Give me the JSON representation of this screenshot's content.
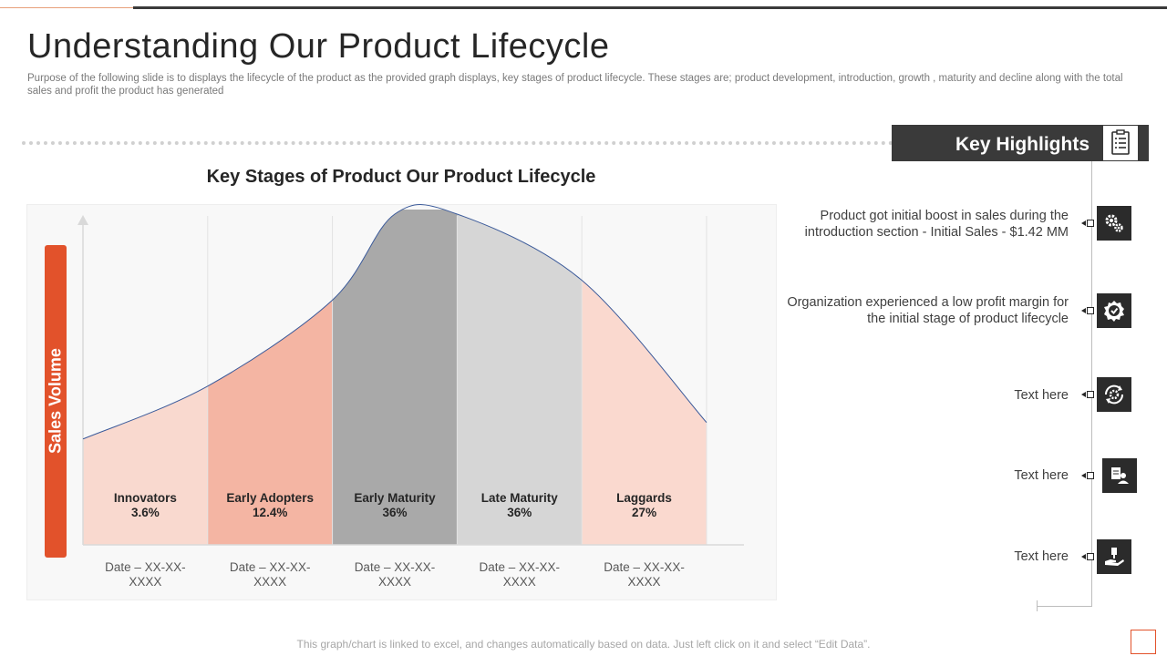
{
  "page": {
    "title": "Understanding Our Product Lifecycle",
    "subtitle": "Purpose of the following slide is to displays the lifecycle of the product as the provided graph displays, key stages of product lifecycle. These stages are; product development, introduction, growth , maturity and decline along with the total sales and profit the product has generated",
    "footnote": "This graph/chart is linked to excel, and changes automatically based on data. Just left click on it and select “Edit Data”."
  },
  "chart_data": {
    "type": "area",
    "title": "Key Stages of Product Our Product Lifecycle",
    "ylabel": "Sales Volume",
    "xlabel": "",
    "stages": [
      {
        "name": "Innovators",
        "percent": "3.6%",
        "value": 3.6,
        "date": "Date – XX-XX-XXXX",
        "color": "#f9d9cf"
      },
      {
        "name": "Early Adopters",
        "percent": "12.4%",
        "value": 12.4,
        "date": "Date – XX-XX-XXXX",
        "color": "#f4b5a3"
      },
      {
        "name": "Early Maturity",
        "percent": "36%",
        "value": 36,
        "date": "Date – XX-XX-XXXX",
        "color": "#a9a9a9"
      },
      {
        "name": "Late Maturity",
        "percent": "36%",
        "value": 36,
        "date": "Date – XX-XX-XXXX",
        "color": "#d6d6d6"
      },
      {
        "name": "Laggards",
        "percent": "27%",
        "value": 27,
        "date": "Date – XX-XX-XXXX",
        "color": "#fad9cf"
      }
    ],
    "curve": {
      "x": [
        0,
        1,
        2,
        2.5,
        3,
        4,
        5
      ],
      "y": [
        32,
        48,
        74,
        100,
        100,
        80,
        37
      ],
      "ylim": [
        0,
        100
      ],
      "xlim": [
        0,
        5.3
      ]
    },
    "colors": {
      "ylabel_bar": "#e2522b",
      "curve_line": "#3b5a9a",
      "axis": "#d9d9d9"
    }
  },
  "highlights": {
    "title": "Key Highlights",
    "header_icon": "checklist-icon",
    "items": [
      {
        "text": "Product got initial boost in sales during the introduction section  - Initial Sales - $1.42 MM",
        "icon": "gears-icon"
      },
      {
        "text": "Organization experienced a low profit margin for the initial stage of product lifecycle",
        "icon": "badge-check-icon"
      },
      {
        "text": "Text here",
        "icon": "cycle-gear-icon"
      },
      {
        "text": "Text here",
        "icon": "person-document-icon"
      },
      {
        "text": "Text here",
        "icon": "hand-money-icon"
      }
    ]
  }
}
